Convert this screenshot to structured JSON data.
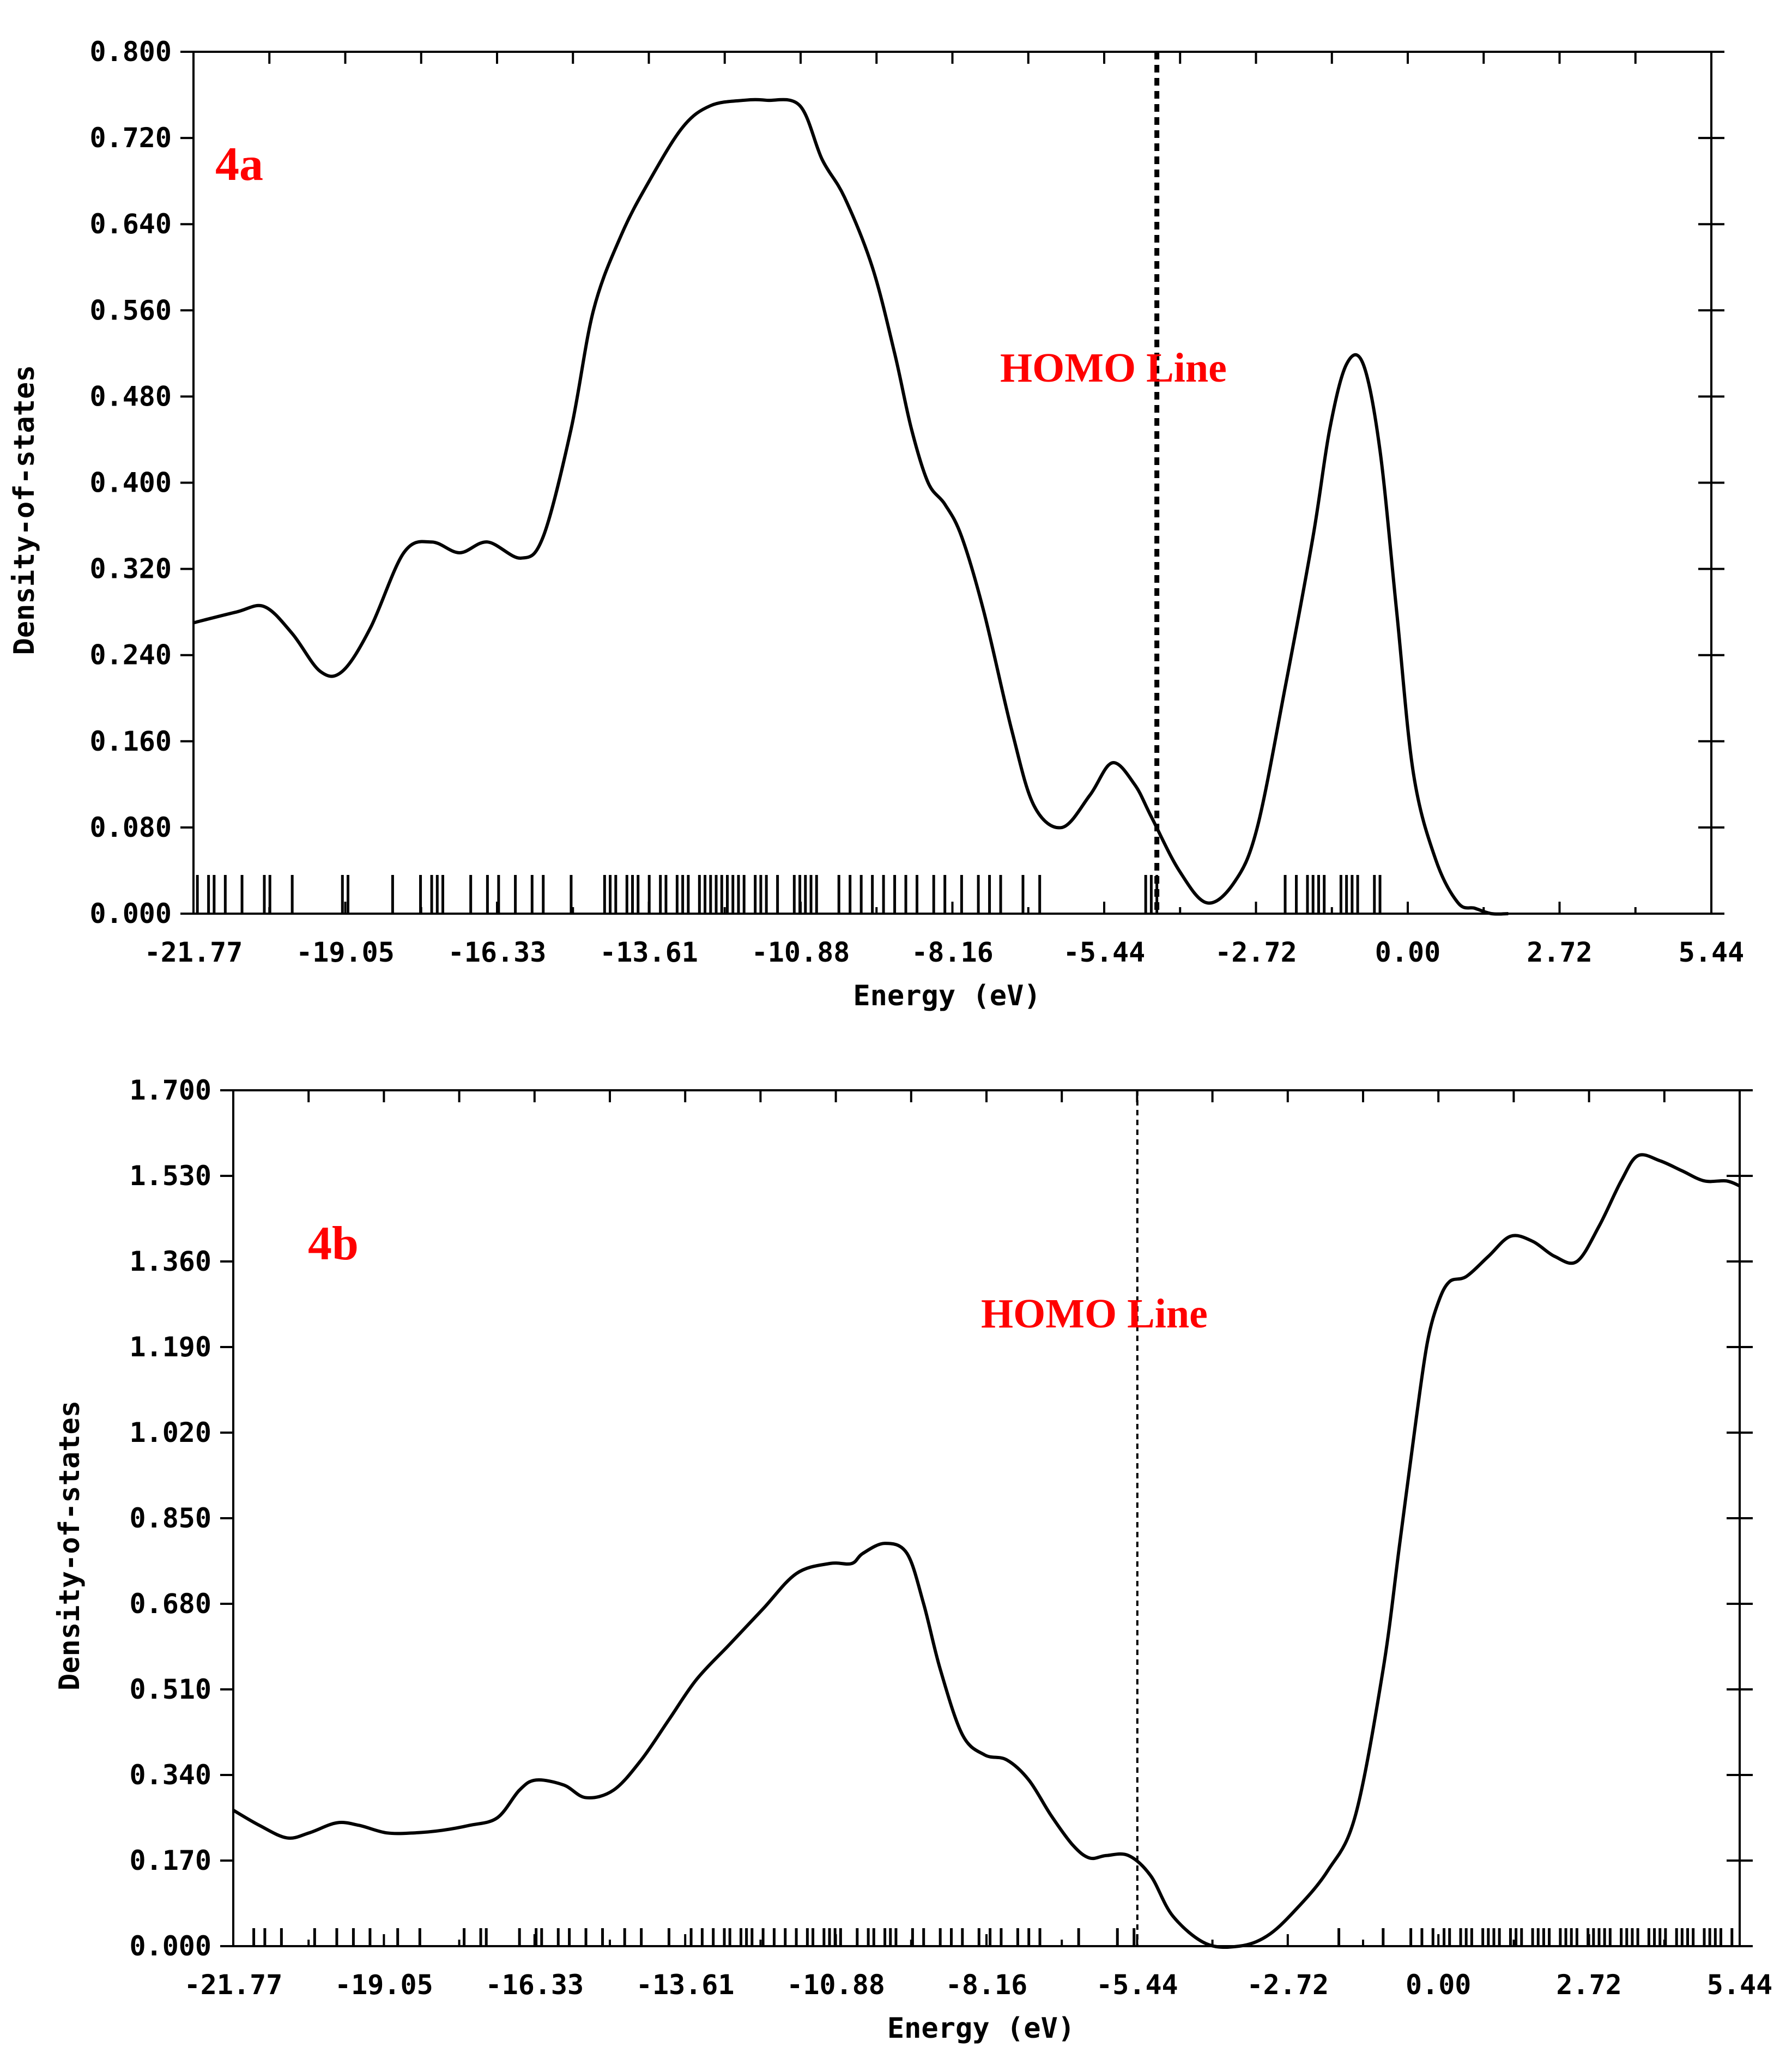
{
  "colors": {
    "accent": "#ff0000",
    "ink": "#000000",
    "background": "#ffffff"
  },
  "chart_data": [
    {
      "type": "line",
      "panel_label": "4a",
      "xlabel": "Energy (eV)",
      "ylabel": "Density-of-states",
      "xlim": [
        -21.77,
        5.44
      ],
      "ylim": [
        0,
        0.8
      ],
      "x_ticks": [
        "-21.77",
        "-19.05",
        "-16.33",
        "-13.61",
        "-10.88",
        "-8.16",
        "-5.44",
        "-2.72",
        "0.00",
        "2.72",
        "5.44"
      ],
      "y_ticks": [
        "0.000",
        "0.080",
        "0.160",
        "0.240",
        "0.320",
        "0.400",
        "0.480",
        "0.560",
        "0.640",
        "0.720",
        "0.800"
      ],
      "homo_line": {
        "x": -4.5,
        "label": "HOMO Line",
        "style": "dashed"
      },
      "series": [
        {
          "x": [
            -21.77,
            -21.0,
            -20.5,
            -20.0,
            -19.5,
            -19.1,
            -18.6,
            -18.0,
            -17.5,
            -17.0,
            -16.5,
            -15.9,
            -15.5,
            -15.0,
            -14.6,
            -14.1,
            -13.6,
            -13.0,
            -12.5,
            -11.9,
            -11.5,
            -10.9,
            -10.5,
            -10.1,
            -9.6,
            -9.2,
            -8.9,
            -8.6,
            -8.3,
            -8.0,
            -7.6,
            -7.1,
            -6.7,
            -6.2,
            -5.7,
            -5.3,
            -4.9,
            -4.6,
            -4.1,
            -3.6,
            -3.1,
            -2.7,
            -2.2,
            -1.7,
            -1.4,
            -1.1,
            -0.8,
            -0.5,
            -0.2,
            0.1,
            0.5,
            0.9,
            1.2,
            1.5,
            1.8
          ],
          "y": [
            0.27,
            0.28,
            0.285,
            0.26,
            0.225,
            0.225,
            0.265,
            0.335,
            0.345,
            0.335,
            0.345,
            0.33,
            0.35,
            0.45,
            0.56,
            0.63,
            0.68,
            0.73,
            0.75,
            0.755,
            0.755,
            0.75,
            0.7,
            0.665,
            0.6,
            0.52,
            0.45,
            0.4,
            0.38,
            0.35,
            0.28,
            0.17,
            0.1,
            0.08,
            0.11,
            0.14,
            0.12,
            0.09,
            0.04,
            0.01,
            0.03,
            0.08,
            0.21,
            0.35,
            0.45,
            0.51,
            0.51,
            0.43,
            0.28,
            0.13,
            0.05,
            0.01,
            0.005,
            0.0,
            0.0
          ]
        }
      ],
      "level_energies": [
        -21.7,
        -21.5,
        -21.4,
        -21.2,
        -20.9,
        -20.5,
        -20.4,
        -20.0,
        -19.1,
        -19.0,
        -18.2,
        -17.7,
        -17.5,
        -17.4,
        -17.3,
        -16.8,
        -16.5,
        -16.3,
        -16.0,
        -15.7,
        -15.5,
        -15.0,
        -14.4,
        -14.3,
        -14.2,
        -14.0,
        -13.9,
        -13.8,
        -13.6,
        -13.4,
        -13.3,
        -13.1,
        -13.0,
        -12.9,
        -12.7,
        -12.6,
        -12.5,
        -12.4,
        -12.3,
        -12.2,
        -12.1,
        -12.0,
        -11.9,
        -11.7,
        -11.6,
        -11.5,
        -11.3,
        -11.0,
        -10.9,
        -10.8,
        -10.7,
        -10.6,
        -10.2,
        -10.0,
        -9.8,
        -9.6,
        -9.4,
        -9.2,
        -9.0,
        -8.8,
        -8.5,
        -8.3,
        -8.0,
        -7.7,
        -7.5,
        -7.3,
        -6.9,
        -6.6,
        -4.7,
        -4.6,
        -4.5,
        -2.2,
        -2.0,
        -1.8,
        -1.7,
        -1.6,
        -1.5,
        -1.2,
        -1.1,
        -1.0,
        -0.9,
        -0.6,
        -0.5
      ]
    },
    {
      "type": "line",
      "panel_label": "4b",
      "xlabel": "Energy (eV)",
      "ylabel": "Density-of-states",
      "xlim": [
        -21.77,
        5.44
      ],
      "ylim": [
        0,
        1.7
      ],
      "x_ticks": [
        "-21.77",
        "-19.05",
        "-16.33",
        "-13.61",
        "-10.88",
        "-8.16",
        "-5.44",
        "-2.72",
        "0.00",
        "2.72",
        "5.44"
      ],
      "y_ticks": [
        "0.000",
        "0.170",
        "0.340",
        "0.510",
        "0.680",
        "0.850",
        "1.020",
        "1.190",
        "1.360",
        "1.530",
        "1.700"
      ],
      "homo_line": {
        "x": -5.44,
        "label": "HOMO Line",
        "style": "dashed"
      },
      "series": [
        {
          "x": [
            -21.77,
            -21.3,
            -20.8,
            -20.4,
            -19.9,
            -19.5,
            -19.0,
            -18.5,
            -18.0,
            -17.5,
            -17.0,
            -16.6,
            -16.3,
            -15.8,
            -15.4,
            -14.9,
            -14.4,
            -13.9,
            -13.4,
            -12.8,
            -12.2,
            -11.6,
            -11.0,
            -10.6,
            -10.4,
            -10.0,
            -9.6,
            -9.3,
            -9.0,
            -8.6,
            -8.2,
            -7.8,
            -7.4,
            -7.0,
            -6.6,
            -6.3,
            -6.0,
            -5.6,
            -5.2,
            -4.8,
            -4.2,
            -3.6,
            -3.1,
            -2.6,
            -2.0,
            -1.5,
            -1.0,
            -0.7,
            -0.4,
            -0.2,
            0.0,
            0.2,
            0.5,
            0.9,
            1.3,
            1.7,
            2.1,
            2.5,
            2.9,
            3.3,
            3.6,
            4.0,
            4.4,
            4.8,
            5.2,
            5.44
          ],
          "y": [
            0.27,
            0.24,
            0.215,
            0.225,
            0.245,
            0.24,
            0.225,
            0.225,
            0.23,
            0.24,
            0.255,
            0.31,
            0.33,
            0.32,
            0.295,
            0.31,
            0.37,
            0.45,
            0.53,
            0.6,
            0.67,
            0.74,
            0.76,
            0.76,
            0.78,
            0.8,
            0.78,
            0.68,
            0.55,
            0.42,
            0.38,
            0.37,
            0.33,
            0.26,
            0.2,
            0.175,
            0.18,
            0.18,
            0.14,
            0.06,
            0.005,
            0.0,
            0.02,
            0.07,
            0.15,
            0.26,
            0.55,
            0.8,
            1.05,
            1.2,
            1.28,
            1.32,
            1.33,
            1.37,
            1.41,
            1.4,
            1.37,
            1.36,
            1.43,
            1.52,
            1.57,
            1.56,
            1.54,
            1.52,
            1.52,
            1.51
          ]
        }
      ],
      "level_energies": [
        -21.4,
        -21.2,
        -20.9,
        -20.3,
        -19.9,
        -19.6,
        -19.3,
        -18.8,
        -18.4,
        -17.6,
        -17.3,
        -17.2,
        -16.6,
        -16.3,
        -16.2,
        -15.9,
        -15.7,
        -15.4,
        -15.1,
        -14.7,
        -14.4,
        -13.9,
        -13.5,
        -13.3,
        -13.1,
        -12.9,
        -12.8,
        -12.6,
        -12.5,
        -12.4,
        -12.2,
        -12.0,
        -11.8,
        -11.6,
        -11.4,
        -11.3,
        -11.1,
        -11.0,
        -10.9,
        -10.8,
        -10.5,
        -10.3,
        -10.2,
        -10.0,
        -9.9,
        -9.8,
        -9.5,
        -9.3,
        -9.0,
        -8.8,
        -8.6,
        -8.3,
        -8.1,
        -7.9,
        -7.6,
        -7.4,
        -7.2,
        -6.5,
        -5.8,
        -5.5,
        -1.8,
        -1.0,
        -0.5,
        -0.3,
        -0.1,
        0.1,
        0.2,
        0.4,
        0.5,
        0.6,
        0.8,
        0.9,
        1.0,
        1.1,
        1.3,
        1.4,
        1.5,
        1.7,
        1.8,
        1.9,
        2.0,
        2.2,
        2.3,
        2.4,
        2.5,
        2.7,
        2.8,
        2.9,
        3.0,
        3.1,
        3.3,
        3.4,
        3.5,
        3.6,
        3.8,
        3.9,
        4.0,
        4.1,
        4.3,
        4.4,
        4.5,
        4.6,
        4.8,
        4.9,
        5.0,
        5.1,
        5.3
      ]
    }
  ]
}
